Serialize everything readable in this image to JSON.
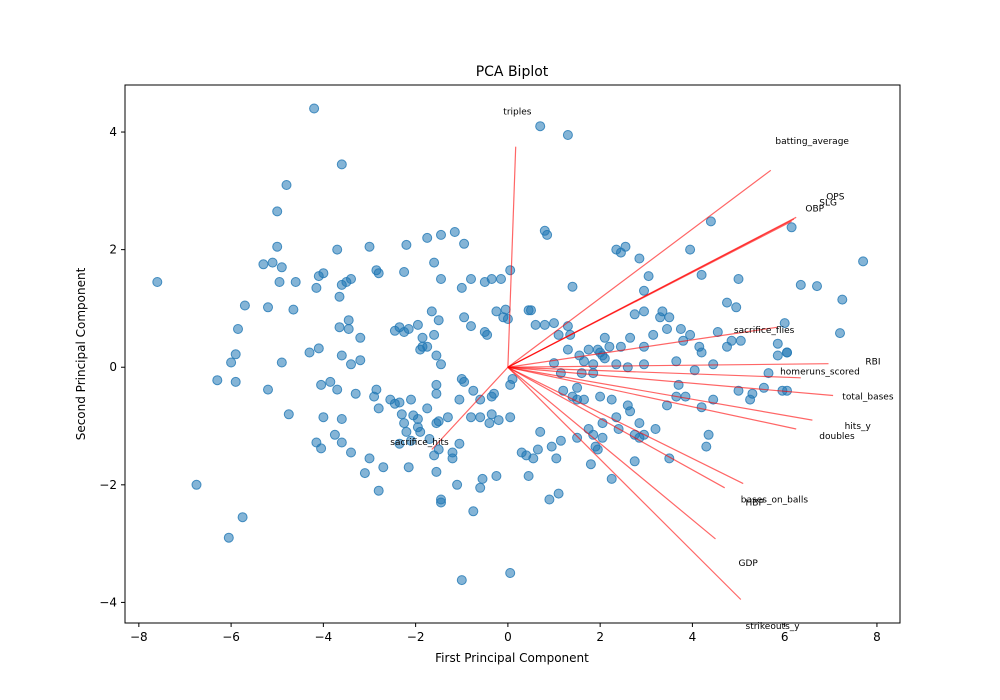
{
  "chart_data": {
    "type": "scatter",
    "title": "PCA Biplot",
    "xlabel": "First Principal Component",
    "ylabel": "Second Principal Component",
    "xlim": [
      -8.3,
      8.5
    ],
    "ylim": [
      -4.35,
      4.8
    ],
    "x_ticks": [
      -8,
      -6,
      -4,
      -2,
      0,
      2,
      4,
      6,
      8
    ],
    "y_ticks": [
      -4,
      -2,
      0,
      2,
      4
    ],
    "grid": false,
    "colors": {
      "points": "#1f77b4",
      "loadings": "#ff0000"
    },
    "points": [
      [
        -4.2,
        4.4
      ],
      [
        0.7,
        4.1
      ],
      [
        1.3,
        3.95
      ],
      [
        -3.6,
        3.45
      ],
      [
        -4.8,
        3.1
      ],
      [
        -5.0,
        2.65
      ],
      [
        -3.0,
        2.05
      ],
      [
        -3.7,
        2.0
      ],
      [
        -5.0,
        2.05
      ],
      [
        -4.9,
        1.7
      ],
      [
        -5.1,
        1.78
      ],
      [
        -5.3,
        1.75
      ],
      [
        -4.0,
        1.6
      ],
      [
        -4.1,
        1.55
      ],
      [
        -3.4,
        1.5
      ],
      [
        -3.5,
        1.45
      ],
      [
        -3.6,
        1.4
      ],
      [
        -3.65,
        1.2
      ],
      [
        -4.6,
        1.45
      ],
      [
        -4.95,
        1.45
      ],
      [
        -4.15,
        1.35
      ],
      [
        -5.7,
        1.05
      ],
      [
        -5.2,
        1.02
      ],
      [
        -4.65,
        0.98
      ],
      [
        -5.85,
        0.65
      ],
      [
        -3.45,
        0.8
      ],
      [
        -3.65,
        0.68
      ],
      [
        -3.45,
        0.65
      ],
      [
        -3.2,
        0.5
      ],
      [
        -4.3,
        0.25
      ],
      [
        -4.1,
        0.32
      ],
      [
        -3.6,
        0.2
      ],
      [
        -3.4,
        0.05
      ],
      [
        -3.2,
        0.12
      ],
      [
        -4.9,
        0.08
      ],
      [
        -5.9,
        0.22
      ],
      [
        -6.0,
        0.08
      ],
      [
        -6.3,
        -0.22
      ],
      [
        -5.9,
        -0.25
      ],
      [
        -5.2,
        -0.38
      ],
      [
        -4.05,
        -0.3
      ],
      [
        -3.85,
        -0.25
      ],
      [
        -3.7,
        -0.38
      ],
      [
        -3.3,
        -0.45
      ],
      [
        -2.9,
        -0.5
      ],
      [
        -2.85,
        -0.38
      ],
      [
        -2.55,
        -0.55
      ],
      [
        -2.45,
        -0.62
      ],
      [
        -2.35,
        -0.6
      ],
      [
        -2.1,
        -0.55
      ],
      [
        -4.75,
        -0.8
      ],
      [
        -4.0,
        -0.85
      ],
      [
        -3.6,
        -0.88
      ],
      [
        -2.8,
        -0.7
      ],
      [
        -2.3,
        -0.8
      ],
      [
        -2.25,
        -0.95
      ],
      [
        -2.05,
        -0.82
      ],
      [
        -1.95,
        -0.88
      ],
      [
        -2.2,
        -1.1
      ],
      [
        -2.35,
        -1.3
      ],
      [
        -2.1,
        -1.25
      ],
      [
        -1.9,
        -1.1
      ],
      [
        -1.7,
        -1.22
      ],
      [
        -1.5,
        -0.92
      ],
      [
        -1.5,
        -1.4
      ],
      [
        -1.2,
        -1.55
      ],
      [
        -1.2,
        -1.45
      ],
      [
        -1.05,
        -1.3
      ],
      [
        -1.6,
        -1.5
      ],
      [
        -3.0,
        -1.55
      ],
      [
        -3.1,
        -1.8
      ],
      [
        -3.4,
        -1.45
      ],
      [
        -3.6,
        -1.28
      ],
      [
        -3.75,
        -1.15
      ],
      [
        -4.05,
        -1.38
      ],
      [
        -4.15,
        -1.28
      ],
      [
        -2.7,
        -1.7
      ],
      [
        -2.15,
        -1.7
      ],
      [
        -1.55,
        -1.78
      ],
      [
        -2.8,
        -2.1
      ],
      [
        -1.45,
        -2.3
      ],
      [
        -1.45,
        -2.25
      ],
      [
        -1.1,
        -2.0
      ],
      [
        -0.75,
        -2.45
      ],
      [
        -0.6,
        -2.05
      ],
      [
        -0.55,
        -1.9
      ],
      [
        -0.25,
        -1.85
      ],
      [
        -1.0,
        -3.62
      ],
      [
        0.05,
        -3.5
      ],
      [
        -7.6,
        1.45
      ],
      [
        -6.75,
        -2.0
      ],
      [
        -6.05,
        -2.9
      ],
      [
        -5.75,
        -2.55
      ],
      [
        -1.75,
        2.2
      ],
      [
        -1.45,
        2.25
      ],
      [
        -1.15,
        2.3
      ],
      [
        -0.95,
        2.1
      ],
      [
        -0.8,
        1.5
      ],
      [
        -0.5,
        1.45
      ],
      [
        -0.35,
        1.5
      ],
      [
        -0.15,
        1.5
      ],
      [
        0.05,
        1.65
      ],
      [
        0.8,
        2.32
      ],
      [
        0.85,
        2.25
      ],
      [
        -1.6,
        1.78
      ],
      [
        -1.45,
        1.5
      ],
      [
        -1.0,
        1.35
      ],
      [
        -2.2,
        2.08
      ],
      [
        -2.25,
        1.62
      ],
      [
        -2.8,
        1.6
      ],
      [
        -2.85,
        1.65
      ],
      [
        -0.05,
        0.98
      ],
      [
        -0.1,
        0.85
      ],
      [
        -0.25,
        0.95
      ],
      [
        0.0,
        0.82
      ],
      [
        0.5,
        0.97
      ],
      [
        0.45,
        0.97
      ],
      [
        0.6,
        0.72
      ],
      [
        0.8,
        0.72
      ],
      [
        -0.5,
        0.6
      ],
      [
        -0.45,
        0.55
      ],
      [
        -0.95,
        0.85
      ],
      [
        -0.8,
        0.7
      ],
      [
        -1.65,
        0.95
      ],
      [
        -1.5,
        0.8
      ],
      [
        -1.6,
        0.55
      ],
      [
        -1.85,
        0.5
      ],
      [
        -1.85,
        0.35
      ],
      [
        -2.15,
        0.65
      ],
      [
        -2.45,
        0.62
      ],
      [
        -2.25,
        0.6
      ],
      [
        -2.35,
        0.68
      ],
      [
        -1.95,
        0.72
      ],
      [
        -1.75,
        0.35
      ],
      [
        -1.9,
        0.3
      ],
      [
        -1.55,
        0.2
      ],
      [
        -1.45,
        0.05
      ],
      [
        -1.55,
        -0.3
      ],
      [
        -1.55,
        -0.45
      ],
      [
        -1.0,
        -0.2
      ],
      [
        -0.95,
        -0.25
      ],
      [
        -0.75,
        -0.4
      ],
      [
        -0.6,
        -0.55
      ],
      [
        -0.35,
        -0.5
      ],
      [
        -0.3,
        -0.45
      ],
      [
        0.05,
        -0.3
      ],
      [
        0.1,
        -0.2
      ],
      [
        -1.05,
        -0.55
      ],
      [
        -1.3,
        -0.85
      ],
      [
        -1.55,
        -0.95
      ],
      [
        -1.75,
        -0.7
      ],
      [
        -1.95,
        -1.02
      ],
      [
        -0.8,
        -0.85
      ],
      [
        -0.6,
        -0.85
      ],
      [
        -0.4,
        -0.95
      ],
      [
        -0.2,
        -0.9
      ],
      [
        -0.35,
        -0.8
      ],
      [
        0.05,
        -0.85
      ],
      [
        0.3,
        -1.45
      ],
      [
        0.4,
        -1.5
      ],
      [
        0.65,
        -1.4
      ],
      [
        0.95,
        -1.35
      ],
      [
        1.15,
        -1.25
      ],
      [
        1.05,
        -1.55
      ],
      [
        0.7,
        -1.1
      ],
      [
        0.55,
        -1.55
      ],
      [
        0.45,
        -1.85
      ],
      [
        0.9,
        -2.25
      ],
      [
        1.1,
        -2.15
      ],
      [
        1.5,
        -0.55
      ],
      [
        1.65,
        -0.55
      ],
      [
        1.5,
        -1.2
      ],
      [
        1.95,
        -1.4
      ],
      [
        1.8,
        -1.65
      ],
      [
        2.25,
        -1.9
      ],
      [
        2.75,
        -1.6
      ],
      [
        2.4,
        -1.05
      ],
      [
        2.75,
        -1.15
      ],
      [
        2.85,
        -1.2
      ],
      [
        3.5,
        -1.55
      ],
      [
        1.75,
        -1.05
      ],
      [
        1.85,
        -1.15
      ],
      [
        1.9,
        -1.35
      ],
      [
        2.05,
        -1.2
      ],
      [
        2.05,
        -0.95
      ],
      [
        2.35,
        -0.85
      ],
      [
        2.65,
        -0.75
      ],
      [
        2.85,
        -0.95
      ],
      [
        2.95,
        -1.15
      ],
      [
        3.2,
        -1.05
      ],
      [
        1.3,
        0.7
      ],
      [
        1.35,
        0.55
      ],
      [
        1.4,
        1.37
      ],
      [
        1.0,
        0.75
      ],
      [
        1.1,
        0.55
      ],
      [
        1.3,
        0.3
      ],
      [
        1.0,
        0.07
      ],
      [
        1.15,
        -0.1
      ],
      [
        1.2,
        -0.4
      ],
      [
        1.4,
        -0.5
      ],
      [
        1.55,
        0.2
      ],
      [
        1.65,
        0.1
      ],
      [
        1.95,
        0.3
      ],
      [
        2.0,
        0.25
      ],
      [
        2.05,
        0.2
      ],
      [
        2.1,
        0.15
      ],
      [
        2.35,
        0.05
      ],
      [
        2.6,
        0.0
      ],
      [
        2.95,
        0.05
      ],
      [
        2.95,
        0.35
      ],
      [
        2.45,
        1.95
      ],
      [
        2.55,
        2.05
      ],
      [
        2.35,
        2.0
      ],
      [
        2.85,
        1.85
      ],
      [
        3.05,
        1.55
      ],
      [
        2.95,
        1.3
      ],
      [
        2.75,
        0.9
      ],
      [
        2.95,
        0.95
      ],
      [
        3.3,
        0.85
      ],
      [
        3.5,
        0.85
      ],
      [
        3.35,
        0.95
      ],
      [
        3.75,
        0.65
      ],
      [
        3.8,
        0.45
      ],
      [
        3.95,
        0.55
      ],
      [
        4.2,
        0.25
      ],
      [
        4.45,
        0.05
      ],
      [
        4.15,
        0.35
      ],
      [
        3.65,
        0.1
      ],
      [
        4.05,
        -0.05
      ],
      [
        3.7,
        -0.3
      ],
      [
        3.85,
        -0.5
      ],
      [
        3.65,
        -0.5
      ],
      [
        3.45,
        -0.65
      ],
      [
        4.45,
        -0.55
      ],
      [
        4.2,
        -0.68
      ],
      [
        4.35,
        -1.15
      ],
      [
        4.3,
        -1.35
      ],
      [
        3.95,
        2.0
      ],
      [
        4.4,
        2.48
      ],
      [
        4.2,
        1.57
      ],
      [
        4.75,
        1.1
      ],
      [
        4.95,
        1.02
      ],
      [
        5.0,
        1.5
      ],
      [
        5.05,
        0.45
      ],
      [
        4.85,
        0.45
      ],
      [
        4.75,
        0.35
      ],
      [
        4.55,
        0.6
      ],
      [
        5.0,
        -0.4
      ],
      [
        5.25,
        -0.55
      ],
      [
        5.3,
        -0.45
      ],
      [
        5.55,
        -0.35
      ],
      [
        5.65,
        -0.1
      ],
      [
        5.85,
        0.2
      ],
      [
        6.05,
        0.25
      ],
      [
        6.15,
        2.38
      ],
      [
        6.35,
        1.4
      ],
      [
        6.7,
        1.38
      ],
      [
        7.2,
        0.58
      ],
      [
        7.25,
        1.15
      ],
      [
        7.7,
        1.8
      ],
      [
        6.0,
        0.75
      ],
      [
        5.85,
        0.4
      ],
      [
        5.95,
        -0.4
      ],
      [
        6.05,
        -0.4
      ],
      [
        6.05,
        0.25
      ],
      [
        1.75,
        0.3
      ],
      [
        2.1,
        0.5
      ],
      [
        2.2,
        0.35
      ],
      [
        3.15,
        0.55
      ],
      [
        3.45,
        0.65
      ],
      [
        2.65,
        0.5
      ],
      [
        2.45,
        0.35
      ],
      [
        1.85,
        0.05
      ],
      [
        1.6,
        -0.1
      ],
      [
        1.5,
        -0.35
      ],
      [
        1.85,
        -0.1
      ],
      [
        2.0,
        -0.5
      ],
      [
        2.25,
        -0.55
      ],
      [
        2.6,
        -0.65
      ]
    ],
    "loadings": [
      {
        "name": "triples",
        "x": 0.17,
        "y": 3.75,
        "lx": -0.1,
        "ly": 4.3
      },
      {
        "name": "batting_average",
        "x": 5.7,
        "y": 3.35,
        "lx": 5.8,
        "ly": 3.8
      },
      {
        "name": "OPS",
        "x": 6.25,
        "y": 2.55,
        "lx": 6.9,
        "ly": 2.85
      },
      {
        "name": "SLG",
        "x": 6.2,
        "y": 2.52,
        "lx": 6.75,
        "ly": 2.75
      },
      {
        "name": "OBP",
        "x": 6.15,
        "y": 2.48,
        "lx": 6.45,
        "ly": 2.65
      },
      {
        "name": "sacrifice_flies",
        "x": 5.85,
        "y": 0.68,
        "lx": 4.9,
        "ly": 0.58
      },
      {
        "name": "RBI",
        "x": 6.95,
        "y": 0.06,
        "lx": 7.75,
        "ly": 0.05
      },
      {
        "name": "homeruns_scored",
        "x": 6.35,
        "y": -0.18,
        "lx": 5.9,
        "ly": -0.12
      },
      {
        "name": "total_bases",
        "x": 7.05,
        "y": -0.48,
        "lx": 7.25,
        "ly": -0.55
      },
      {
        "name": "hits_y",
        "x": 6.6,
        "y": -0.9,
        "lx": 7.3,
        "ly": -1.05
      },
      {
        "name": "doubles",
        "x": 6.25,
        "y": -1.05,
        "lx": 6.75,
        "ly": -1.22
      },
      {
        "name": "sacrifice_hits",
        "x": -1.65,
        "y": -1.4,
        "lx": -2.55,
        "ly": -1.32
      },
      {
        "name": "bases_on_balls",
        "x": 5.1,
        "y": -1.98,
        "lx": 5.05,
        "ly": -2.3
      },
      {
        "name": "HBP",
        "x": 4.7,
        "y": -2.05,
        "lx": 5.15,
        "ly": -2.35
      },
      {
        "name": "GDP",
        "x": 4.5,
        "y": -2.92,
        "lx": 5.0,
        "ly": -3.38
      },
      {
        "name": "strikeouts_y",
        "x": 5.05,
        "y": -3.95,
        "lx": 5.15,
        "ly": -4.45
      }
    ]
  }
}
